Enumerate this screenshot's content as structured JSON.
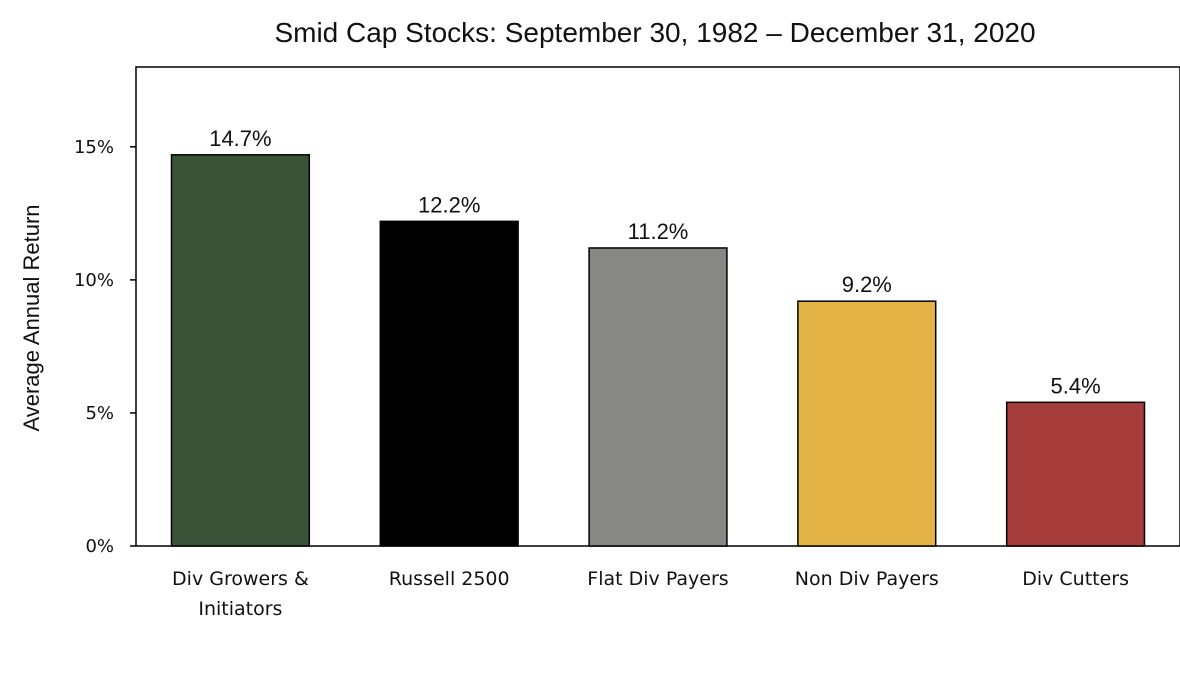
{
  "chart_data": {
    "type": "bar",
    "title": "Smid Cap Stocks:  September 30, 1982 – December 31, 2020",
    "xlabel": "",
    "ylabel": "Average Annual Return",
    "ylim": [
      0,
      18
    ],
    "yticks": [
      {
        "value": 0,
        "label": "0%"
      },
      {
        "value": 5,
        "label": "5%"
      },
      {
        "value": 10,
        "label": "10%"
      },
      {
        "value": 15,
        "label": "15%"
      }
    ],
    "grid": false,
    "legend": "none",
    "categories": [
      [
        "Div Growers &",
        "Initiators"
      ],
      [
        "Russell 2500"
      ],
      [
        "Flat Div Payers"
      ],
      [
        "Non Div Payers"
      ],
      [
        "Div Cutters"
      ]
    ],
    "values": [
      14.7,
      12.2,
      11.2,
      9.2,
      5.4
    ],
    "data_labels": [
      "14.7%",
      "12.2%",
      "11.2%",
      "9.2%",
      "5.4%"
    ],
    "colors": [
      "#3a5238",
      "#000000",
      "#878883",
      "#e4b345",
      "#a63d3a"
    ]
  }
}
